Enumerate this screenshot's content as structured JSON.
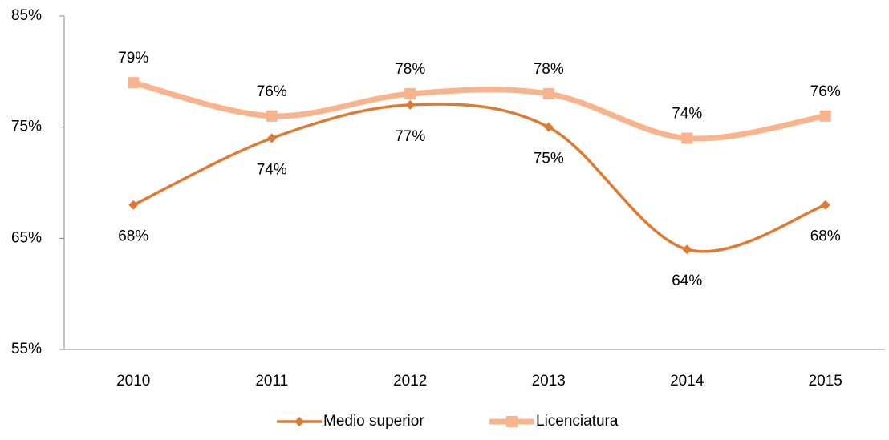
{
  "chart_data": {
    "type": "line",
    "categories": [
      "2010",
      "2011",
      "2012",
      "2013",
      "2014",
      "2015"
    ],
    "series": [
      {
        "name": "Medio superior",
        "color": "#e07a32",
        "values": [
          68,
          74,
          77,
          75,
          64,
          68
        ],
        "value_labels": [
          "68%",
          "74%",
          "77%",
          "75%",
          "64%",
          "68%"
        ]
      },
      {
        "name": "Licenciatura",
        "color": "#f8b48c",
        "values": [
          79,
          76,
          78,
          78,
          74,
          76
        ],
        "value_labels": [
          "79%",
          "76%",
          "78%",
          "78%",
          "74%",
          "76%"
        ]
      }
    ],
    "ylim": [
      55,
      85
    ],
    "yticks": [
      {
        "value": 55,
        "label": "55%"
      },
      {
        "value": 65,
        "label": "65%"
      },
      {
        "value": 75,
        "label": "75%"
      },
      {
        "value": 85,
        "label": "85%"
      }
    ],
    "grid": false,
    "legend": "bottom"
  }
}
